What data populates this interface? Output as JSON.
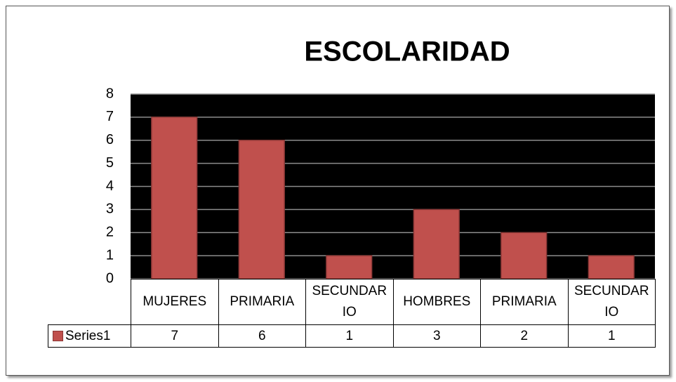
{
  "chart_data": {
    "type": "bar",
    "title": "ESCOLARIDAD",
    "categories": [
      "MUJERES",
      "PRIMARIA",
      "SECUNDARIO",
      "HOMBRES",
      "PRIMARIA",
      "SECUNDARIO"
    ],
    "series": [
      {
        "name": "Series1",
        "color": "#c0504d",
        "values": [
          7,
          6,
          1,
          3,
          2,
          1
        ]
      }
    ],
    "ylim": [
      0,
      8
    ],
    "yticks": [
      0,
      1,
      2,
      3,
      4,
      5,
      6,
      7,
      8
    ],
    "grid": true
  }
}
